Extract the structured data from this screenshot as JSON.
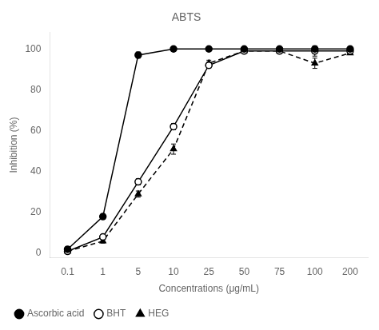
{
  "chart_data": {
    "type": "line",
    "title": "ABTS",
    "xlabel": "Concentrations (μg/mL)",
    "ylabel": "Inhibition (%)",
    "categories": [
      "0.1",
      "1",
      "5",
      "10",
      "25",
      "50",
      "75",
      "100",
      "200"
    ],
    "series": [
      {
        "name": "Ascorbic acid",
        "color": "#000000",
        "marker": "circle",
        "line_style": "solid",
        "values": [
          2,
          18,
          97,
          100,
          100,
          100,
          100,
          100,
          100
        ],
        "yerr": [
          0.5,
          1.2,
          1.5,
          0.5,
          0.5,
          0.5,
          0.5,
          0.5,
          0.5
        ]
      },
      {
        "name": "BHT",
        "color": "#000000",
        "marker": "open_circle",
        "line_style": "solid",
        "values": [
          1,
          8,
          35,
          62,
          92,
          99,
          99,
          99,
          99
        ],
        "yerr": [
          0.5,
          1.0,
          1.5,
          1.5,
          1.5,
          0.5,
          0.5,
          2.5,
          0.5
        ]
      },
      {
        "name": "HEG",
        "color": "#000000",
        "marker": "triangle",
        "line_style": "dashed",
        "values": [
          1,
          6,
          29,
          51,
          93,
          99,
          99,
          93,
          98
        ],
        "yerr": [
          0.5,
          1.0,
          1.5,
          2.5,
          1.5,
          0.5,
          0.5,
          2.5,
          0.5
        ]
      }
    ],
    "ylim": [
      -2,
      108
    ],
    "yticks": [
      0,
      20,
      40,
      60,
      80,
      100
    ],
    "grid": false,
    "legend": "bottom"
  }
}
